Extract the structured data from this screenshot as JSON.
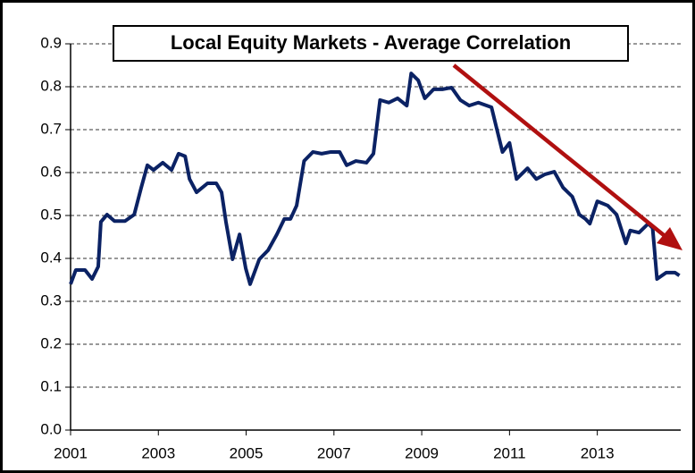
{
  "chart_data": {
    "type": "line",
    "title": "Local Equity Markets - Average Correlation",
    "x": [
      2001.0,
      2001.12,
      2001.33,
      2001.49,
      2001.63,
      2001.69,
      2001.83,
      2002.0,
      2002.24,
      2002.45,
      2002.61,
      2002.75,
      2002.89,
      2003.1,
      2003.3,
      2003.46,
      2003.61,
      2003.71,
      2003.87,
      2004.12,
      2004.32,
      2004.44,
      2004.54,
      2004.69,
      2004.85,
      2004.99,
      2005.09,
      2005.3,
      2005.5,
      2005.7,
      2005.87,
      2006.01,
      2006.15,
      2006.32,
      2006.52,
      2006.72,
      2006.93,
      2007.13,
      2007.29,
      2007.5,
      2007.74,
      2007.9,
      2008.05,
      2008.25,
      2008.45,
      2008.66,
      2008.76,
      2008.92,
      2009.07,
      2009.27,
      2009.47,
      2009.68,
      2009.88,
      2010.08,
      2010.29,
      2010.59,
      2010.69,
      2010.84,
      2011.0,
      2011.16,
      2011.41,
      2011.61,
      2011.81,
      2012.02,
      2012.22,
      2012.43,
      2012.59,
      2012.73,
      2012.83,
      2013.0,
      2013.24,
      2013.44,
      2013.65,
      2013.75,
      2013.95,
      2014.16,
      2014.26,
      2014.36,
      2014.57,
      2014.77,
      2014.87
    ],
    "series": [
      {
        "name": "Average Correlation",
        "color": "#0b2264",
        "values": [
          0.34,
          0.373,
          0.373,
          0.352,
          0.381,
          0.485,
          0.502,
          0.487,
          0.487,
          0.502,
          0.565,
          0.617,
          0.606,
          0.623,
          0.606,
          0.644,
          0.638,
          0.585,
          0.554,
          0.575,
          0.575,
          0.554,
          0.485,
          0.398,
          0.456,
          0.377,
          0.34,
          0.398,
          0.419,
          0.456,
          0.492,
          0.492,
          0.523,
          0.627,
          0.648,
          0.644,
          0.648,
          0.648,
          0.617,
          0.627,
          0.623,
          0.644,
          0.769,
          0.763,
          0.773,
          0.756,
          0.831,
          0.815,
          0.773,
          0.794,
          0.794,
          0.798,
          0.769,
          0.756,
          0.763,
          0.752,
          0.71,
          0.648,
          0.669,
          0.585,
          0.61,
          0.585,
          0.596,
          0.602,
          0.565,
          0.544,
          0.502,
          0.492,
          0.481,
          0.533,
          0.523,
          0.502,
          0.435,
          0.465,
          0.46,
          0.481,
          0.471,
          0.352,
          0.367,
          0.367,
          0.36
        ]
      }
    ],
    "xlim": [
      2001,
      2014.9
    ],
    "xticks": [
      2001,
      2003,
      2005,
      2007,
      2009,
      2011,
      2013
    ],
    "ylim": [
      0,
      0.9
    ],
    "yticks": [
      {
        "value": 0,
        "label": "0.0"
      },
      0.1,
      0.2,
      0.3,
      0.4,
      0.5,
      0.6,
      0.7,
      0.8,
      0.9
    ],
    "grid": true
  }
}
